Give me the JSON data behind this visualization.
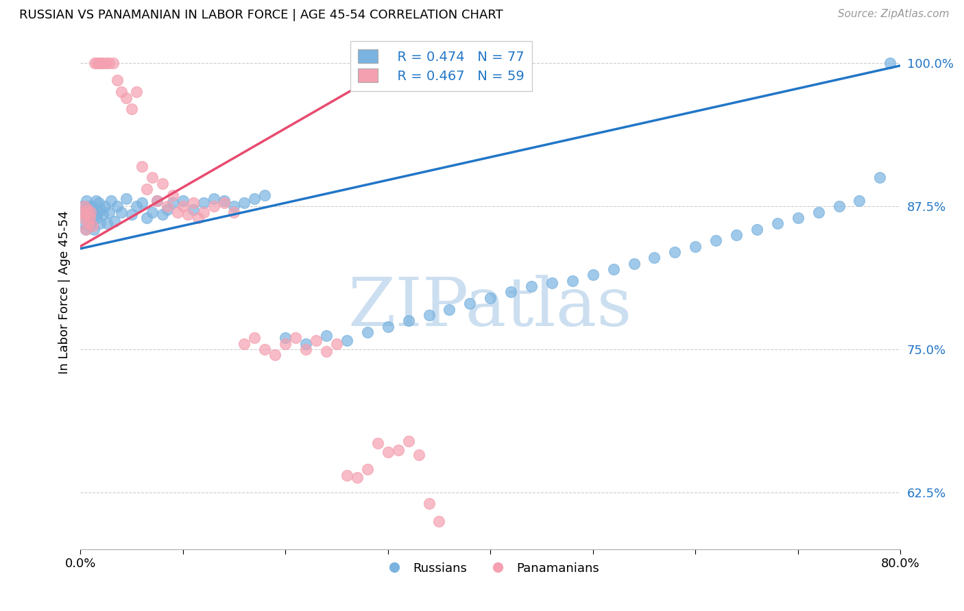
{
  "title": "RUSSIAN VS PANAMANIAN IN LABOR FORCE | AGE 45-54 CORRELATION CHART",
  "source": "Source: ZipAtlas.com",
  "ylabel": "In Labor Force | Age 45-54",
  "xlim": [
    0.0,
    0.8
  ],
  "ylim": [
    0.575,
    1.025
  ],
  "ytick_positions": [
    0.625,
    0.75,
    0.875,
    1.0
  ],
  "russian_R": 0.474,
  "russian_N": 77,
  "panamanian_R": 0.467,
  "panamanian_N": 59,
  "russian_color": "#7ab3e0",
  "panamanian_color": "#f4a0b0",
  "russian_line_color": "#2176c7",
  "panamanian_line_color": "#e84a6f",
  "legend_color": "#2176c7",
  "watermark_color": "#ccdff0",
  "russians_x": [
    0.002,
    0.003,
    0.004,
    0.005,
    0.006,
    0.007,
    0.008,
    0.009,
    0.01,
    0.011,
    0.012,
    0.013,
    0.014,
    0.015,
    0.016,
    0.017,
    0.018,
    0.019,
    0.02,
    0.022,
    0.024,
    0.026,
    0.028,
    0.03,
    0.033,
    0.036,
    0.04,
    0.045,
    0.05,
    0.055,
    0.06,
    0.065,
    0.07,
    0.075,
    0.08,
    0.085,
    0.09,
    0.1,
    0.11,
    0.12,
    0.13,
    0.14,
    0.15,
    0.16,
    0.17,
    0.18,
    0.2,
    0.22,
    0.24,
    0.26,
    0.28,
    0.3,
    0.32,
    0.34,
    0.36,
    0.38,
    0.4,
    0.42,
    0.44,
    0.46,
    0.48,
    0.5,
    0.52,
    0.54,
    0.56,
    0.58,
    0.6,
    0.62,
    0.64,
    0.66,
    0.68,
    0.7,
    0.72,
    0.74,
    0.76,
    0.78,
    0.79
  ],
  "russians_y": [
    0.875,
    0.86,
    0.87,
    0.855,
    0.88,
    0.865,
    0.875,
    0.858,
    0.862,
    0.87,
    0.875,
    0.855,
    0.868,
    0.88,
    0.865,
    0.87,
    0.878,
    0.86,
    0.872,
    0.868,
    0.875,
    0.86,
    0.87,
    0.88,
    0.862,
    0.875,
    0.87,
    0.882,
    0.868,
    0.875,
    0.878,
    0.865,
    0.87,
    0.88,
    0.868,
    0.872,
    0.878,
    0.88,
    0.872,
    0.878,
    0.882,
    0.88,
    0.875,
    0.878,
    0.882,
    0.885,
    0.76,
    0.755,
    0.762,
    0.758,
    0.765,
    0.77,
    0.775,
    0.78,
    0.785,
    0.79,
    0.795,
    0.8,
    0.805,
    0.808,
    0.81,
    0.815,
    0.82,
    0.825,
    0.83,
    0.835,
    0.84,
    0.845,
    0.85,
    0.855,
    0.86,
    0.865,
    0.87,
    0.875,
    0.88,
    0.9,
    1.0
  ],
  "panamanians_x": [
    0.002,
    0.003,
    0.004,
    0.005,
    0.006,
    0.007,
    0.008,
    0.009,
    0.01,
    0.012,
    0.014,
    0.016,
    0.018,
    0.02,
    0.022,
    0.025,
    0.028,
    0.032,
    0.036,
    0.04,
    0.045,
    0.05,
    0.055,
    0.06,
    0.065,
    0.07,
    0.075,
    0.08,
    0.085,
    0.09,
    0.095,
    0.1,
    0.105,
    0.11,
    0.115,
    0.12,
    0.13,
    0.14,
    0.15,
    0.16,
    0.17,
    0.18,
    0.19,
    0.2,
    0.21,
    0.22,
    0.23,
    0.24,
    0.25,
    0.26,
    0.27,
    0.28,
    0.29,
    0.3,
    0.31,
    0.32,
    0.33,
    0.34,
    0.35
  ],
  "panamanians_y": [
    0.87,
    0.865,
    0.875,
    0.855,
    0.868,
    0.872,
    0.86,
    0.865,
    0.87,
    0.858,
    1.0,
    1.0,
    1.0,
    1.0,
    1.0,
    1.0,
    1.0,
    1.0,
    0.985,
    0.975,
    0.97,
    0.96,
    0.975,
    0.91,
    0.89,
    0.9,
    0.88,
    0.895,
    0.875,
    0.885,
    0.87,
    0.875,
    0.868,
    0.878,
    0.865,
    0.87,
    0.875,
    0.878,
    0.87,
    0.755,
    0.76,
    0.75,
    0.745,
    0.755,
    0.76,
    0.75,
    0.758,
    0.748,
    0.755,
    0.64,
    0.638,
    0.645,
    0.668,
    0.66,
    0.662,
    0.67,
    0.658,
    0.615,
    0.6
  ],
  "russian_trend_x": [
    0.0,
    0.8
  ],
  "russian_trend_y": [
    0.838,
    0.998
  ],
  "panamanian_trend_x": [
    0.0,
    0.32
  ],
  "panamanian_trend_y": [
    0.84,
    1.005
  ]
}
